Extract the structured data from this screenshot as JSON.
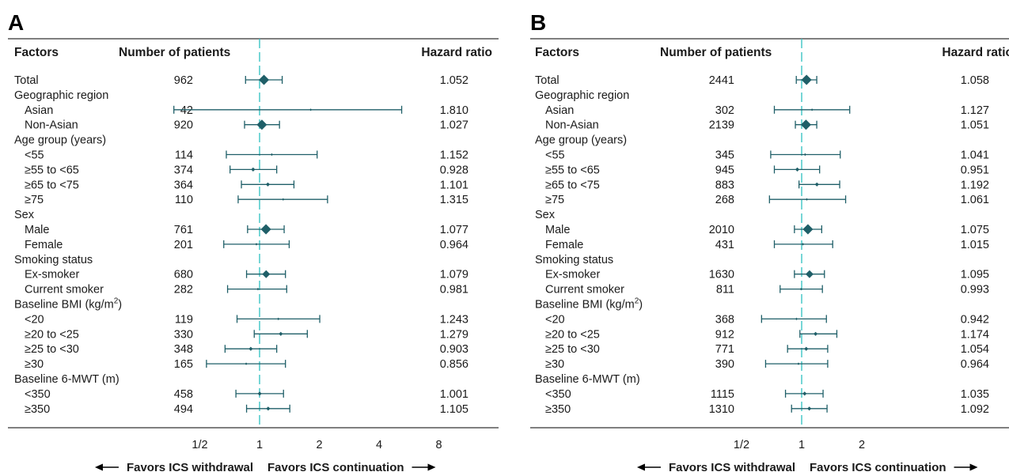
{
  "chart_data": [
    {
      "type": "forest",
      "panel": "A",
      "headers": {
        "factors": "Factors",
        "patients": "Number of patients",
        "hr": "Hazard ratio"
      },
      "x_scale": "log2",
      "x_ticks": [
        {
          "value": 0.5,
          "label": "1/2"
        },
        {
          "value": 1,
          "label": "1"
        },
        {
          "value": 2,
          "label": "2"
        },
        {
          "value": 4,
          "label": "4"
        },
        {
          "value": 8,
          "label": "8"
        }
      ],
      "reference_line": 1,
      "favors_left": "Favors ICS withdrawal",
      "favors_right": "Favors ICS continuation",
      "rows": [
        {
          "label": "Total",
          "indent": 0,
          "n": "962",
          "hr_text": "1.052",
          "hr": 1.052,
          "lo": 0.85,
          "hi": 1.3,
          "marker": "large"
        },
        {
          "label": "Geographic region",
          "indent": 0
        },
        {
          "label": "Asian",
          "indent": 1,
          "n": "42",
          "hr_text": "1.810",
          "hr": 1.81,
          "lo": 0.37,
          "hi": 5.2,
          "marker": "tiny"
        },
        {
          "label": "Non-Asian",
          "indent": 1,
          "n": "920",
          "hr_text": "1.027",
          "hr": 1.027,
          "lo": 0.84,
          "hi": 1.26,
          "marker": "large"
        },
        {
          "label": "Age group (years)",
          "indent": 0
        },
        {
          "label": "<55",
          "indent": 1,
          "n": "114",
          "hr_text": "1.152",
          "hr": 1.152,
          "lo": 0.68,
          "hi": 1.95,
          "marker": "tiny"
        },
        {
          "label": "≥55 to <65",
          "indent": 1,
          "n": "374",
          "hr_text": "0.928",
          "hr": 0.928,
          "lo": 0.71,
          "hi": 1.22,
          "marker": "small"
        },
        {
          "label": "≥65 to <75",
          "indent": 1,
          "n": "364",
          "hr_text": "1.101",
          "hr": 1.101,
          "lo": 0.81,
          "hi": 1.49,
          "marker": "small"
        },
        {
          "label": "≥75",
          "indent": 1,
          "n": "110",
          "hr_text": "1.315",
          "hr": 1.315,
          "lo": 0.78,
          "hi": 2.2,
          "marker": "tiny"
        },
        {
          "label": "Sex",
          "indent": 0
        },
        {
          "label": "Male",
          "indent": 1,
          "n": "761",
          "hr_text": "1.077",
          "hr": 1.077,
          "lo": 0.87,
          "hi": 1.33,
          "marker": "large"
        },
        {
          "label": "Female",
          "indent": 1,
          "n": "201",
          "hr_text": "0.964",
          "hr": 0.964,
          "lo": 0.66,
          "hi": 1.41,
          "marker": "tiny"
        },
        {
          "label": "Smoking status",
          "indent": 0
        },
        {
          "label": "Ex-smoker",
          "indent": 1,
          "n": "680",
          "hr_text": "1.079",
          "hr": 1.079,
          "lo": 0.86,
          "hi": 1.35,
          "marker": "medium"
        },
        {
          "label": "Current smoker",
          "indent": 1,
          "n": "282",
          "hr_text": "0.981",
          "hr": 0.981,
          "lo": 0.69,
          "hi": 1.37,
          "marker": "tiny"
        },
        {
          "label": "Baseline BMI (kg/m",
          "sup": "2",
          "label_end": ")",
          "indent": 0
        },
        {
          "label": "<20",
          "indent": 1,
          "n": "119",
          "hr_text": "1.243",
          "hr": 1.243,
          "lo": 0.77,
          "hi": 2.01,
          "marker": "tiny"
        },
        {
          "label": "≥20 to <25",
          "indent": 1,
          "n": "330",
          "hr_text": "1.279",
          "hr": 1.279,
          "lo": 0.94,
          "hi": 1.74,
          "marker": "small"
        },
        {
          "label": "≥25 to <30",
          "indent": 1,
          "n": "348",
          "hr_text": "0.903",
          "hr": 0.903,
          "lo": 0.67,
          "hi": 1.22,
          "marker": "small"
        },
        {
          "label": "≥30",
          "indent": 1,
          "n": "165",
          "hr_text": "0.856",
          "hr": 0.856,
          "lo": 0.54,
          "hi": 1.35,
          "marker": "tiny"
        },
        {
          "label": "Baseline 6-MWT (m)",
          "indent": 0
        },
        {
          "label": "<350",
          "indent": 1,
          "n": "458",
          "hr_text": "1.001",
          "hr": 1.001,
          "lo": 0.76,
          "hi": 1.32,
          "marker": "small"
        },
        {
          "label": "≥350",
          "indent": 1,
          "n": "494",
          "hr_text": "1.105",
          "hr": 1.105,
          "lo": 0.86,
          "hi": 1.42,
          "marker": "small"
        }
      ]
    },
    {
      "type": "forest",
      "panel": "B",
      "headers": {
        "factors": "Factors",
        "patients": "Number of patients",
        "hr": "Hazard ratio"
      },
      "x_scale": "log2",
      "x_ticks": [
        {
          "value": 0.5,
          "label": "1/2"
        },
        {
          "value": 1,
          "label": "1"
        },
        {
          "value": 2,
          "label": "2"
        }
      ],
      "reference_line": 1,
      "favors_left": "Favors ICS withdrawal",
      "favors_right": "Favors ICS continuation",
      "rows": [
        {
          "label": "Total",
          "indent": 0,
          "n": "2441",
          "hr_text": "1.058",
          "hr": 1.058,
          "lo": 0.94,
          "hi": 1.19,
          "marker": "large"
        },
        {
          "label": "Geographic region",
          "indent": 0
        },
        {
          "label": "Asian",
          "indent": 1,
          "n": "302",
          "hr_text": "1.127",
          "hr": 1.127,
          "lo": 0.73,
          "hi": 1.74,
          "marker": "tiny"
        },
        {
          "label": "Non-Asian",
          "indent": 1,
          "n": "2139",
          "hr_text": "1.051",
          "hr": 1.051,
          "lo": 0.93,
          "hi": 1.19,
          "marker": "large"
        },
        {
          "label": "Age group (years)",
          "indent": 0
        },
        {
          "label": "<55",
          "indent": 1,
          "n": "345",
          "hr_text": "1.041",
          "hr": 1.041,
          "lo": 0.7,
          "hi": 1.56,
          "marker": "tiny"
        },
        {
          "label": "≥55 to <65",
          "indent": 1,
          "n": "945",
          "hr_text": "0.951",
          "hr": 0.951,
          "lo": 0.73,
          "hi": 1.23,
          "marker": "small"
        },
        {
          "label": "≥65 to <75",
          "indent": 1,
          "n": "883",
          "hr_text": "1.192",
          "hr": 1.192,
          "lo": 0.97,
          "hi": 1.55,
          "marker": "small"
        },
        {
          "label": "≥75",
          "indent": 1,
          "n": "268",
          "hr_text": "1.061",
          "hr": 1.061,
          "lo": 0.69,
          "hi": 1.66,
          "marker": "tiny"
        },
        {
          "label": "Sex",
          "indent": 0
        },
        {
          "label": "Male",
          "indent": 1,
          "n": "2010",
          "hr_text": "1.075",
          "hr": 1.075,
          "lo": 0.92,
          "hi": 1.26,
          "marker": "large"
        },
        {
          "label": "Female",
          "indent": 1,
          "n": "431",
          "hr_text": "1.015",
          "hr": 1.015,
          "lo": 0.73,
          "hi": 1.43,
          "marker": "tiny"
        },
        {
          "label": "Smoking status",
          "indent": 0
        },
        {
          "label": "Ex-smoker",
          "indent": 1,
          "n": "1630",
          "hr_text": "1.095",
          "hr": 1.095,
          "lo": 0.92,
          "hi": 1.3,
          "marker": "medium"
        },
        {
          "label": "Current smoker",
          "indent": 1,
          "n": "811",
          "hr_text": "0.993",
          "hr": 0.993,
          "lo": 0.78,
          "hi": 1.27,
          "marker": "tiny"
        },
        {
          "label": "Baseline BMI (kg/m",
          "sup": "2",
          "label_end": ")",
          "indent": 0
        },
        {
          "label": "<20",
          "indent": 1,
          "n": "368",
          "hr_text": "0.942",
          "hr": 0.942,
          "lo": 0.63,
          "hi": 1.33,
          "marker": "tiny"
        },
        {
          "label": "≥20 to <25",
          "indent": 1,
          "n": "912",
          "hr_text": "1.174",
          "hr": 1.174,
          "lo": 0.98,
          "hi": 1.5,
          "marker": "small"
        },
        {
          "label": "≥25 to <30",
          "indent": 1,
          "n": "771",
          "hr_text": "1.054",
          "hr": 1.054,
          "lo": 0.85,
          "hi": 1.35,
          "marker": "small"
        },
        {
          "label": "≥30",
          "indent": 1,
          "n": "390",
          "hr_text": "0.964",
          "hr": 0.964,
          "lo": 0.66,
          "hi": 1.35,
          "marker": "tiny"
        },
        {
          "label": "Baseline 6-MWT (m)",
          "indent": 0
        },
        {
          "label": "<350",
          "indent": 1,
          "n": "1115",
          "hr_text": "1.035",
          "hr": 1.035,
          "lo": 0.83,
          "hi": 1.28,
          "marker": "small"
        },
        {
          "label": "≥350",
          "indent": 1,
          "n": "1310",
          "hr_text": "1.092",
          "hr": 1.092,
          "lo": 0.89,
          "hi": 1.34,
          "marker": "small"
        }
      ]
    }
  ],
  "colors": {
    "marker": "#1f5f68",
    "reference_line": "#3cc4c4",
    "rule": "#333333",
    "text": "#1a1a1a"
  }
}
